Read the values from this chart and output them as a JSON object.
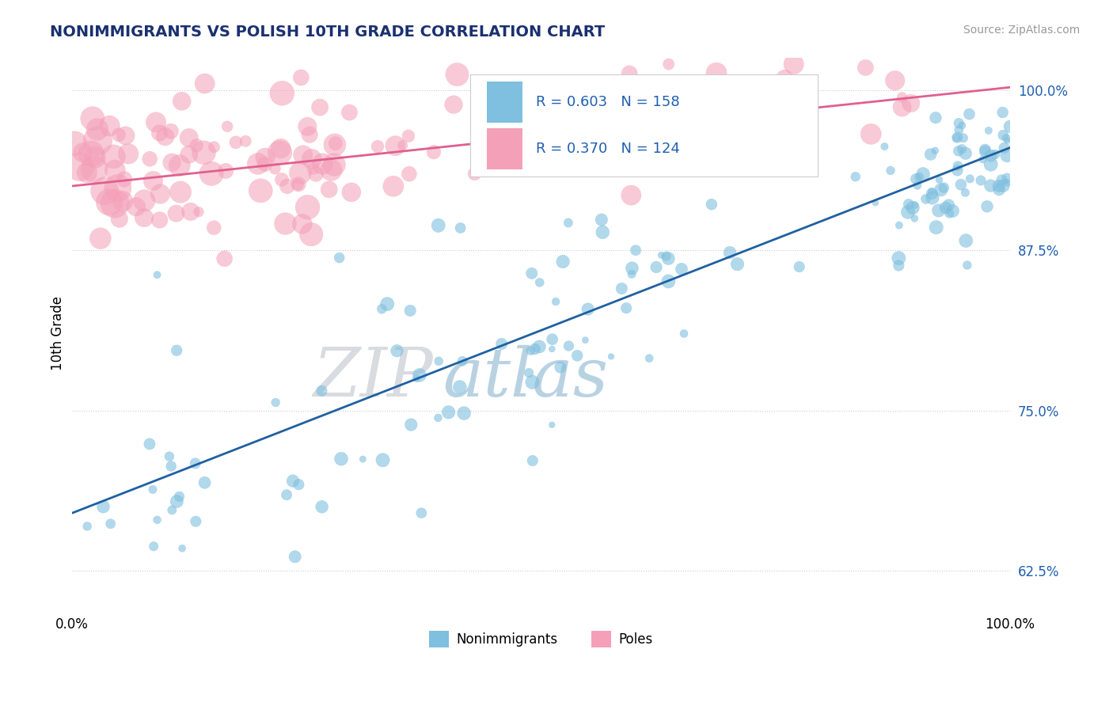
{
  "title": "NONIMMIGRANTS VS POLISH 10TH GRADE CORRELATION CHART",
  "source_text": "Source: ZipAtlas.com",
  "ylabel": "10th Grade",
  "watermark_zip": "ZIP",
  "watermark_atlas": "atlas",
  "legend_blue_r": "R = 0.603",
  "legend_blue_n": "N = 158",
  "legend_pink_r": "R = 0.370",
  "legend_pink_n": "N = 124",
  "legend_blue_label": "Nonimmigrants",
  "legend_pink_label": "Poles",
  "blue_color": "#7fbfdf",
  "pink_color": "#f4a0b8",
  "trend_blue_color": "#2060a0",
  "trend_pink_color": "#e06090",
  "r_n_blue_color": "#2060b0",
  "r_n_dark_color": "#1a2a6b",
  "xlim": [
    0,
    1
  ],
  "ylim": [
    0.595,
    1.025
  ],
  "right_yticks": [
    0.625,
    0.75,
    0.875,
    1.0
  ],
  "right_ytick_labels": [
    "62.5%",
    "75.0%",
    "87.5%",
    "100.0%"
  ],
  "grid_color": "#cccccc",
  "background_color": "#ffffff",
  "title_color": "#1a3070",
  "source_color": "#999999",
  "blue_trend_start": 0.67,
  "blue_trend_end": 0.955,
  "pink_trend_start": 0.925,
  "pink_trend_end": 1.002
}
